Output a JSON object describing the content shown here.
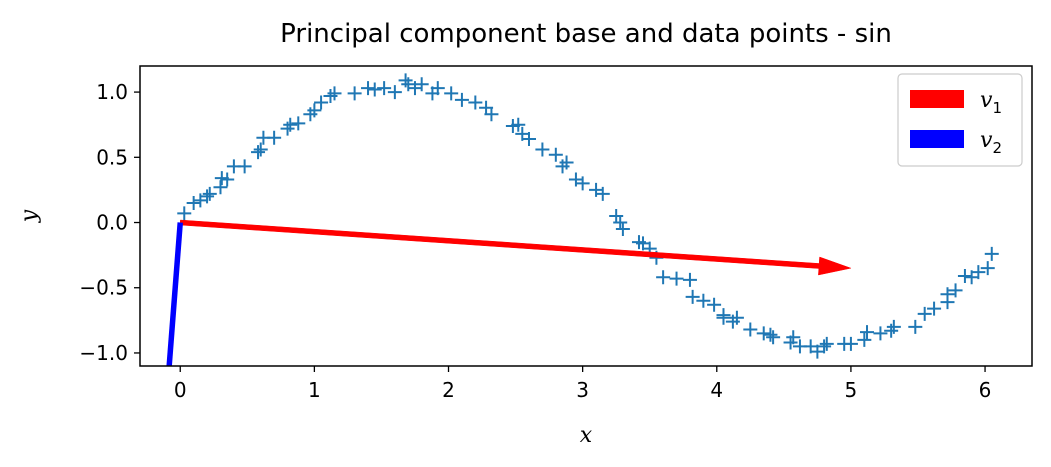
{
  "chart_data": {
    "type": "scatter",
    "title": "Principal component base and data points - sin",
    "xlabel": "x",
    "ylabel": "y",
    "xlim": [
      -0.3,
      6.35
    ],
    "ylim": [
      -1.1,
      1.2
    ],
    "xticks": [
      0,
      1,
      2,
      3,
      4,
      5,
      6
    ],
    "xtick_labels": [
      "0",
      "1",
      "2",
      "3",
      "4",
      "5",
      "6"
    ],
    "yticks": [
      -1.0,
      -0.5,
      0.0,
      0.5,
      1.0
    ],
    "ytick_labels": [
      "−1.0",
      "−0.5",
      "0.0",
      "0.5",
      "1.0"
    ],
    "grid": false,
    "legend_position": "top-right",
    "points": {
      "color": "#1f77b4",
      "marker": "plus",
      "x": [
        0.03,
        0.1,
        0.15,
        0.2,
        0.22,
        0.3,
        0.31,
        0.35,
        0.4,
        0.48,
        0.58,
        0.6,
        0.62,
        0.7,
        0.8,
        0.82,
        0.88,
        0.97,
        1.0,
        1.05,
        1.12,
        1.15,
        1.3,
        1.4,
        1.45,
        1.52,
        1.6,
        1.68,
        1.7,
        1.75,
        1.8,
        1.88,
        1.92,
        2.02,
        2.1,
        2.2,
        2.28,
        2.32,
        2.48,
        2.52,
        2.55,
        2.6,
        2.7,
        2.8,
        2.85,
        2.88,
        2.95,
        3.0,
        3.1,
        3.15,
        3.25,
        3.28,
        3.3,
        3.42,
        3.45,
        3.5,
        3.55,
        3.6,
        3.7,
        3.8,
        3.82,
        3.9,
        3.98,
        4.05,
        4.05,
        4.12,
        4.15,
        4.25,
        4.35,
        4.4,
        4.42,
        4.55,
        4.57,
        4.62,
        4.7,
        4.75,
        4.8,
        4.82,
        4.95,
        5.0,
        5.1,
        5.12,
        5.22,
        5.3,
        5.32,
        5.48,
        5.55,
        5.62,
        5.72,
        5.72,
        5.78,
        5.85,
        5.9,
        5.95,
        6.02,
        6.05
      ],
      "y": [
        0.07,
        0.15,
        0.17,
        0.2,
        0.22,
        0.27,
        0.34,
        0.33,
        0.43,
        0.43,
        0.54,
        0.56,
        0.65,
        0.65,
        0.72,
        0.75,
        0.76,
        0.83,
        0.86,
        0.92,
        0.97,
        0.99,
        0.99,
        1.03,
        1.02,
        1.03,
        1.0,
        1.09,
        1.06,
        1.03,
        1.06,
        0.99,
        1.03,
        0.99,
        0.94,
        0.92,
        0.88,
        0.83,
        0.74,
        0.75,
        0.68,
        0.64,
        0.56,
        0.52,
        0.43,
        0.46,
        0.33,
        0.3,
        0.25,
        0.22,
        0.05,
        0.0,
        -0.05,
        -0.15,
        -0.16,
        -0.2,
        -0.27,
        -0.42,
        -0.43,
        -0.44,
        -0.57,
        -0.6,
        -0.63,
        -0.71,
        -0.73,
        -0.76,
        -0.73,
        -0.82,
        -0.85,
        -0.86,
        -0.88,
        -0.92,
        -0.88,
        -0.95,
        -0.95,
        -0.99,
        -0.95,
        -0.93,
        -0.93,
        -0.93,
        -0.9,
        -0.84,
        -0.85,
        -0.83,
        -0.8,
        -0.8,
        -0.7,
        -0.66,
        -0.61,
        -0.55,
        -0.52,
        -0.41,
        -0.42,
        -0.38,
        -0.35,
        -0.24
      ]
    },
    "vectors": [
      {
        "name": "v",
        "subscript": "1",
        "color": "#ff0000",
        "from": [
          0,
          0
        ],
        "to": [
          5.0,
          -0.35
        ],
        "arrow": true
      },
      {
        "name": "v",
        "subscript": "2",
        "color": "#0000ff",
        "from": [
          0,
          0
        ],
        "to": [
          -0.09,
          -1.2
        ],
        "arrow": false
      }
    ]
  }
}
